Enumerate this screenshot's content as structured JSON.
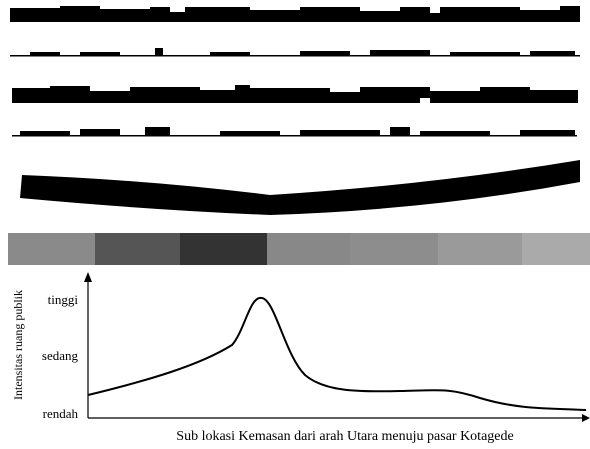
{
  "y_axis": {
    "title": "Intensitas ruang publik",
    "levels": [
      "tinggi",
      "sedang",
      "rendah"
    ]
  },
  "x_axis": {
    "title": "Sub lokasi Kemasan dari arah Utara menuju pasar Kotagede"
  }
}
